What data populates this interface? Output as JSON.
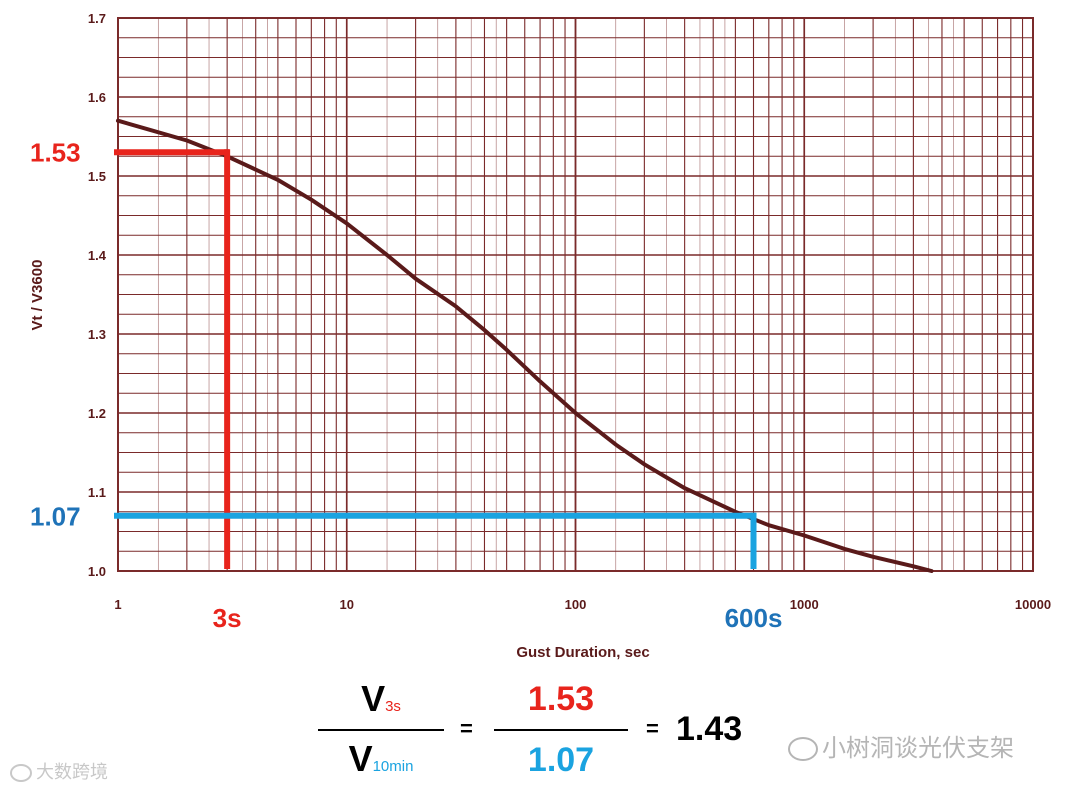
{
  "chart_data": {
    "type": "line",
    "xscale": "log",
    "xlim": [
      1,
      10000
    ],
    "ylim": [
      1.0,
      1.7
    ],
    "xlabel": "Gust Duration, sec",
    "ylabel": "Vt / V3600",
    "xticks": [
      "1",
      "10",
      "100",
      "1000",
      "10000"
    ],
    "yticks": [
      "1.0",
      "1.1",
      "1.2",
      "1.3",
      "1.4",
      "1.5",
      "1.6",
      "1.7"
    ],
    "grid": true,
    "series": [
      {
        "x": [
          1,
          2,
          3,
          5,
          7,
          10,
          15,
          20,
          30,
          40,
          50,
          70,
          100,
          150,
          200,
          300,
          500,
          700,
          1000,
          1500,
          2000,
          3000,
          3600
        ],
        "y": [
          1.57,
          1.545,
          1.525,
          1.495,
          1.47,
          1.44,
          1.4,
          1.37,
          1.335,
          1.305,
          1.28,
          1.24,
          1.2,
          1.16,
          1.135,
          1.105,
          1.075,
          1.058,
          1.045,
          1.028,
          1.018,
          1.006,
          1.0
        ]
      }
    ],
    "annotations": [
      {
        "label": "1.53",
        "x": 3,
        "y": 1.53,
        "color": "#e8241c"
      },
      {
        "label": "3s",
        "x": 3,
        "color": "#e8241c"
      },
      {
        "label": "1.07",
        "x": 600,
        "y": 1.07,
        "color": "#1f73b8"
      },
      {
        "label": "600s",
        "x": 600,
        "color": "#1f73b8"
      }
    ],
    "colors": {
      "curve": "#5a1a1a",
      "grid": "#7a2a2a",
      "red": "#e8241c",
      "blue": "#1aa3e0"
    }
  },
  "formula": {
    "numerator_var": "V",
    "numerator_sub": "3s",
    "denominator_var": "V",
    "denominator_sub": "10min",
    "eq1": "=",
    "num_value": "1.53",
    "den_value": "1.07",
    "eq2": "=",
    "result": "1.43"
  },
  "watermarks": {
    "right": "小树洞谈光伏支架",
    "left": "大数跨境"
  }
}
